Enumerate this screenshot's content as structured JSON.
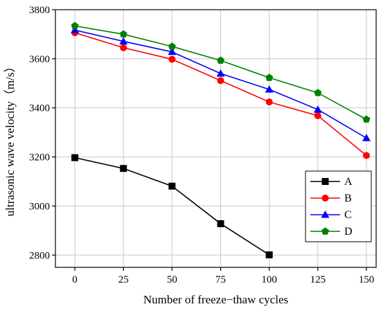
{
  "chart_data": {
    "type": "line",
    "xlabel": "Number of freeze−thaw cycles",
    "ylabel": "ultrasonic wave velocity（m/s）",
    "xlim": [
      -10,
      155
    ],
    "ylim": [
      2750,
      3800
    ],
    "x_ticks": [
      0,
      25,
      50,
      75,
      100,
      125,
      150
    ],
    "y_ticks": [
      2800,
      3000,
      3200,
      3400,
      3600,
      3800
    ],
    "grid": true,
    "legend_position": "lower-right",
    "series": [
      {
        "name": "A",
        "color": "#000000",
        "marker": "square",
        "x": [
          0,
          25,
          50,
          75,
          100
        ],
        "y": [
          3197,
          3153,
          3081,
          2928,
          2801
        ]
      },
      {
        "name": "B",
        "color": "#ff0000",
        "marker": "circle",
        "x": [
          0,
          25,
          50,
          75,
          100,
          125,
          150
        ],
        "y": [
          3706,
          3645,
          3598,
          3511,
          3424,
          3368,
          3206
        ]
      },
      {
        "name": "C",
        "color": "#0000ff",
        "marker": "triangle",
        "x": [
          0,
          25,
          50,
          75,
          100,
          125,
          150
        ],
        "y": [
          3717,
          3671,
          3628,
          3540,
          3475,
          3393,
          3277
        ]
      },
      {
        "name": "D",
        "color": "#008000",
        "marker": "pentagon",
        "x": [
          0,
          25,
          50,
          75,
          100,
          125,
          150
        ],
        "y": [
          3734,
          3700,
          3650,
          3593,
          3523,
          3461,
          3353
        ]
      }
    ]
  }
}
